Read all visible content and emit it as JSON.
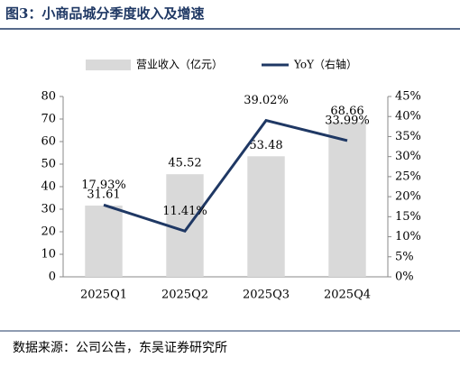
{
  "chart_data": {
    "type": "combo",
    "title": "图3：小商品城分季度收入及增速",
    "categories": [
      "2025Q1",
      "2025Q2",
      "2025Q3",
      "2025Q4"
    ],
    "series": [
      {
        "name": "营业收入（亿元）",
        "type": "bar",
        "color": "#d9d9d9",
        "values": [
          31.61,
          45.52,
          53.48,
          68.66
        ]
      },
      {
        "name": "YoY（右轴）",
        "type": "line",
        "axis": "y2",
        "color": "#1f3864",
        "values": [
          17.93,
          11.41,
          39.02,
          33.99
        ],
        "value_labels": [
          "17.93%",
          "11.41%",
          "39.02%",
          "33.99%"
        ]
      }
    ],
    "ylim": [
      0,
      80
    ],
    "yticks": [
      0,
      10,
      20,
      30,
      40,
      50,
      60,
      70,
      80
    ],
    "y2lim": [
      0,
      45
    ],
    "y2ticks": [
      {
        "value": 0,
        "label": "0%"
      },
      {
        "value": 5,
        "label": "5%"
      },
      {
        "value": 10,
        "label": "10%"
      },
      {
        "value": 15,
        "label": "15%"
      },
      {
        "value": 20,
        "label": "20%"
      },
      {
        "value": 25,
        "label": "25%"
      },
      {
        "value": 30,
        "label": "30%"
      },
      {
        "value": 35,
        "label": "35%"
      },
      {
        "value": 40,
        "label": "40%"
      },
      {
        "value": 45,
        "label": "45%"
      }
    ],
    "grid": false,
    "legend": "top",
    "source": "数据来源：公司公告，东吴证券研究所"
  }
}
